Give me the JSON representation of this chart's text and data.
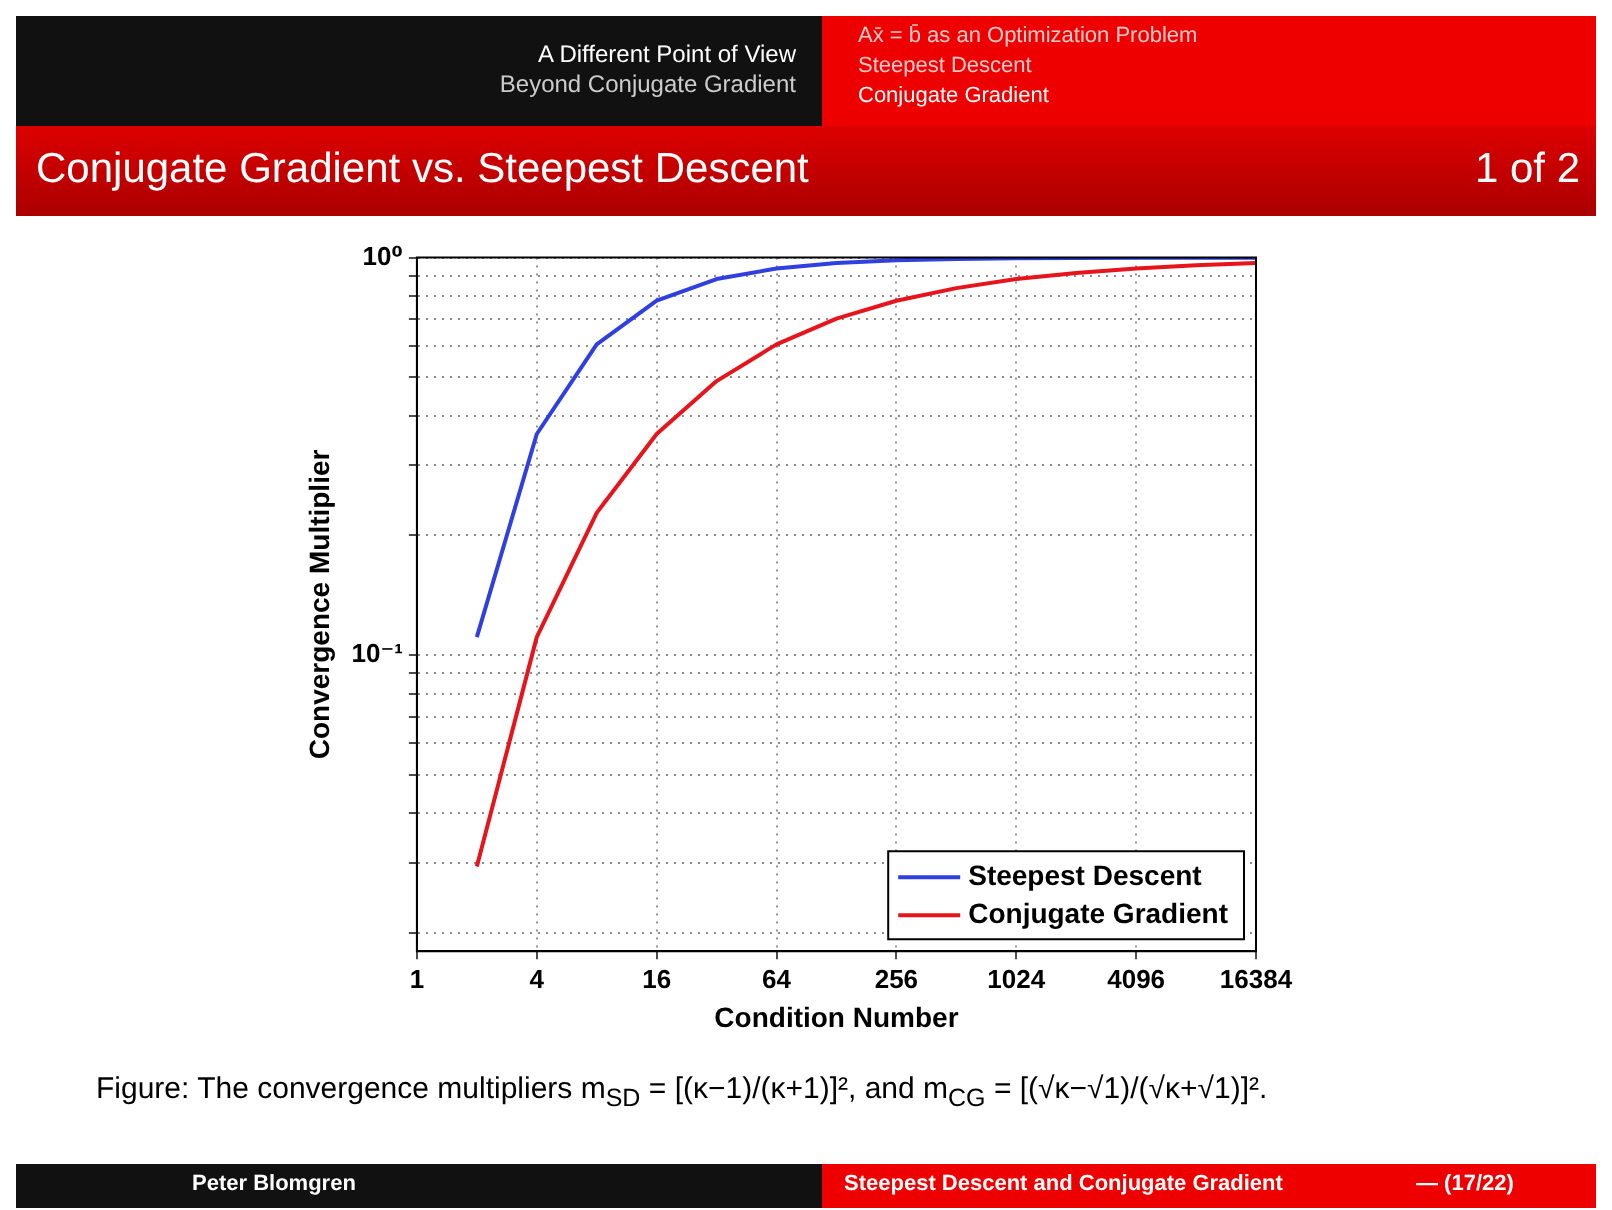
{
  "chart_data": {
    "type": "line",
    "title": "Conjugate Gradient vs. Steepest Descent",
    "xlabel": "Condition Number",
    "ylabel": "Convergence Multiplier",
    "x": [
      2,
      4,
      8,
      16,
      32,
      64,
      128,
      256,
      512,
      1024,
      2048,
      4096,
      8192,
      16384
    ],
    "series": [
      {
        "name": "Steepest Descent",
        "color": "#2f3fe0",
        "values": [
          0.111,
          0.36,
          0.605,
          0.779,
          0.883,
          0.939,
          0.969,
          0.985,
          0.992,
          0.996,
          0.998,
          0.999,
          0.9995,
          0.9998
        ]
      },
      {
        "name": "Conjugate Gradient",
        "color": "#e8141c",
        "values": [
          0.0294,
          0.111,
          0.228,
          0.36,
          0.489,
          0.605,
          0.702,
          0.779,
          0.838,
          0.883,
          0.915,
          0.939,
          0.957,
          0.969
        ]
      }
    ],
    "log": "xy",
    "xlim": [
      1,
      16384
    ],
    "xticks": [
      1,
      4,
      16,
      64,
      256,
      1024,
      4096,
      16384
    ],
    "ylim": [
      0.018,
      1
    ],
    "yticks": [
      {
        "value": 0.02,
        "label": null
      },
      {
        "value": 0.03,
        "label": null
      },
      {
        "value": 0.04,
        "label": null
      },
      {
        "value": 0.05,
        "label": null
      },
      {
        "value": 0.06,
        "label": null
      },
      {
        "value": 0.07,
        "label": null
      },
      {
        "value": 0.08,
        "label": null
      },
      {
        "value": 0.09,
        "label": null
      },
      {
        "value": 0.1,
        "label": "10⁻¹"
      },
      {
        "value": 0.2,
        "label": null
      },
      {
        "value": 0.3,
        "label": null
      },
      {
        "value": 0.4,
        "label": null
      },
      {
        "value": 0.5,
        "label": null
      },
      {
        "value": 0.6,
        "label": null
      },
      {
        "value": 0.7,
        "label": null
      },
      {
        "value": 0.8,
        "label": null
      },
      {
        "value": 0.9,
        "label": null
      },
      {
        "value": 1,
        "label": "10⁰"
      }
    ],
    "grid": true,
    "legend": "bottom right",
    "marker": "none",
    "line_style": "solid",
    "annotations": [
      "1 of 2",
      "A Different Point of View",
      "Beyond Conjugate Gradient",
      "Ax̄ = b̄ as an Optimization Problem",
      "Steepest Descent",
      "Conjugate Gradient",
      "Figure: The convergence multipliers m$_{SD}$ = [(κ−1)/(κ+1)]², and m$_{CG}$ = [(√κ−√1)/(√κ+√1)]².",
      "Peter Blomgren",
      "Steepest Descent and Conjugate Gradient",
      "— (17/22)"
    ]
  }
}
